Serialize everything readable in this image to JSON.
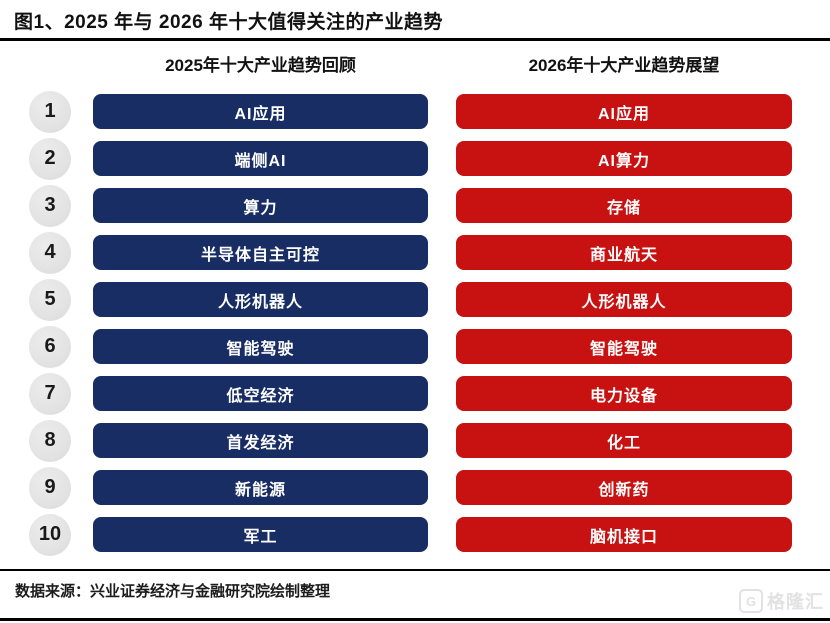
{
  "title": "图1、2025 年与 2026 年十大值得关注的产业趋势",
  "headers": {
    "left": "2025年十大产业趋势回顾",
    "right": "2026年十大产业趋势展望"
  },
  "rows": [
    {
      "rank": "1",
      "left": "AI应用",
      "right": "AI应用"
    },
    {
      "rank": "2",
      "left": "端侧AI",
      "right": "AI算力"
    },
    {
      "rank": "3",
      "left": "算力",
      "right": "存储"
    },
    {
      "rank": "4",
      "left": "半导体自主可控",
      "right": "商业航天"
    },
    {
      "rank": "5",
      "left": "人形机器人",
      "right": "人形机器人"
    },
    {
      "rank": "6",
      "left": "智能驾驶",
      "right": "智能驾驶"
    },
    {
      "rank": "7",
      "left": "低空经济",
      "right": "电力设备"
    },
    {
      "rank": "8",
      "left": "首发经济",
      "right": "化工"
    },
    {
      "rank": "9",
      "left": "新能源",
      "right": "创新药"
    },
    {
      "rank": "10",
      "left": "军工",
      "right": "脑机接口"
    }
  ],
  "footer": {
    "source": "数据来源：兴业证券经济与金融研究院绘制整理"
  },
  "watermark": {
    "icon": "G",
    "text": "格隆汇"
  },
  "colors": {
    "navy_pill": "#182d64",
    "red_pill": "#c81111",
    "rank_circle_gray": "#e3e3e3",
    "rule_black": "#000000"
  },
  "chart_data": {
    "type": "table",
    "title": "图1、2025 年与 2026 年十大值得关注的产业趋势",
    "columns": [
      "2025年十大产业趋势回顾",
      "2026年十大产业趋势展望"
    ],
    "ranks": [
      1,
      2,
      3,
      4,
      5,
      6,
      7,
      8,
      9,
      10
    ],
    "series": [
      {
        "name": "2025年十大产业趋势回顾",
        "values": [
          "AI应用",
          "端侧AI",
          "算力",
          "半导体自主可控",
          "人形机器人",
          "智能驾驶",
          "低空经济",
          "首发经济",
          "新能源",
          "军工"
        ]
      },
      {
        "name": "2026年十大产业趋势展望",
        "values": [
          "AI应用",
          "AI算力",
          "存储",
          "商业航天",
          "人形机器人",
          "智能驾驶",
          "电力设备",
          "化工",
          "创新药",
          "脑机接口"
        ]
      }
    ],
    "source": "数据来源：兴业证券经济与金融研究院绘制整理"
  }
}
